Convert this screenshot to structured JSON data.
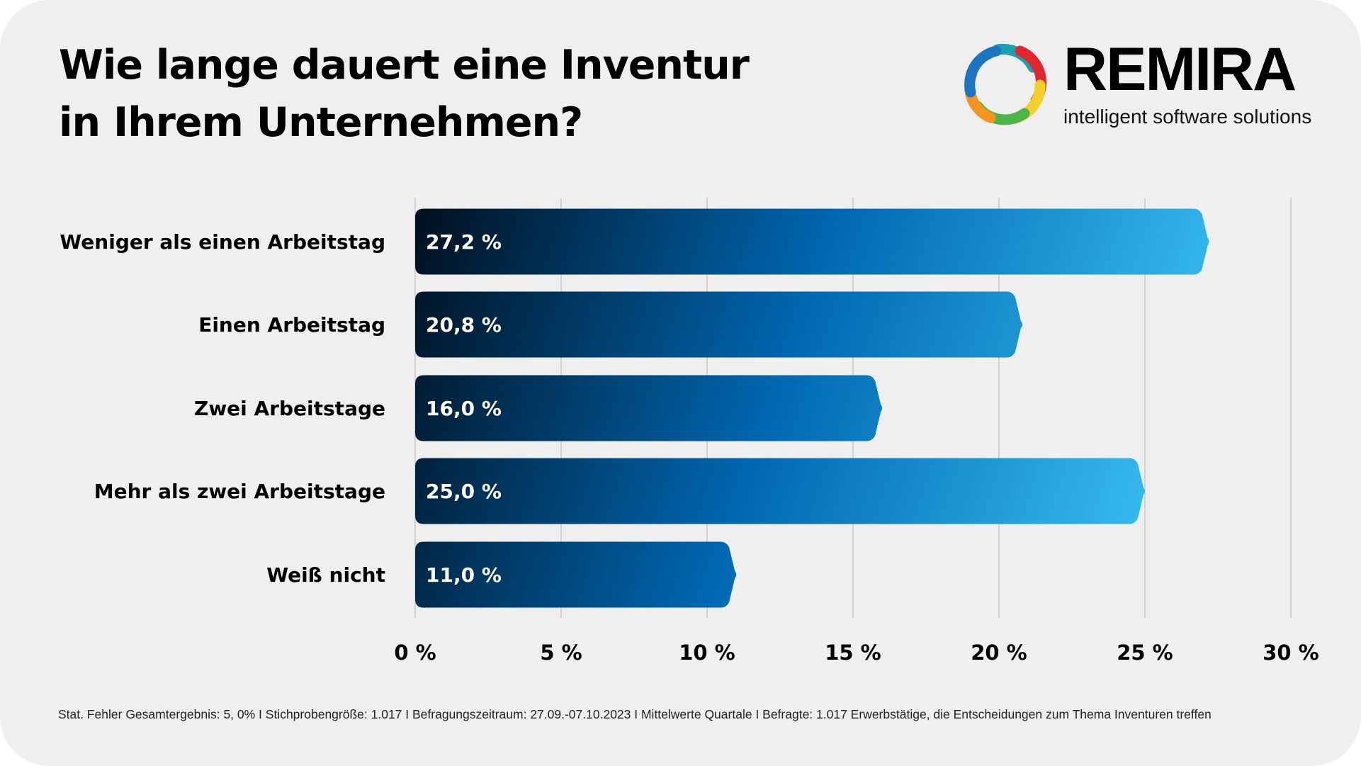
{
  "title_lines": [
    "Wie lange dauert eine Inventur",
    "in Ihrem Unternehmen?"
  ],
  "logo": {
    "brand": "REMIRA",
    "tagline": "intelligent software solutions"
  },
  "chart_data": {
    "type": "bar",
    "orientation": "horizontal",
    "title": "Wie lange dauert eine Inventur in Ihrem Unternehmen?",
    "categories": [
      "Weniger als einen Arbeitstag",
      "Einen Arbeitstag",
      "Zwei Arbeitstage",
      "Mehr als zwei Arbeitstage",
      "Weiß nicht"
    ],
    "values": [
      27.2,
      20.8,
      16.0,
      25.0,
      11.0
    ],
    "value_labels": [
      "27,2 %",
      "20,8 %",
      "16,0 %",
      "25,0 %",
      "11,0 %"
    ],
    "xlim": [
      0,
      30
    ],
    "xticks": [
      0,
      5,
      10,
      15,
      20,
      25,
      30
    ],
    "xtick_labels": [
      "0 %",
      "5 %",
      "10 %",
      "15 %",
      "20 %",
      "25 %",
      "30 %"
    ],
    "grid": true,
    "xlabel": "",
    "ylabel": "",
    "colors": {
      "start": "#00101f",
      "mid": "#0068b2",
      "end": "#38bdf0"
    }
  },
  "footer": "Stat. Fehler Gesamtergebnis: 5, 0% I Stichprobengröße: 1.017 I Befragungszeitraum: 27.09.-07.10.2023 I Mittelwerte Quartale I Befragte: 1.017 Erwerbstätige, die Entscheidungen zum Thema Inventuren treffen"
}
